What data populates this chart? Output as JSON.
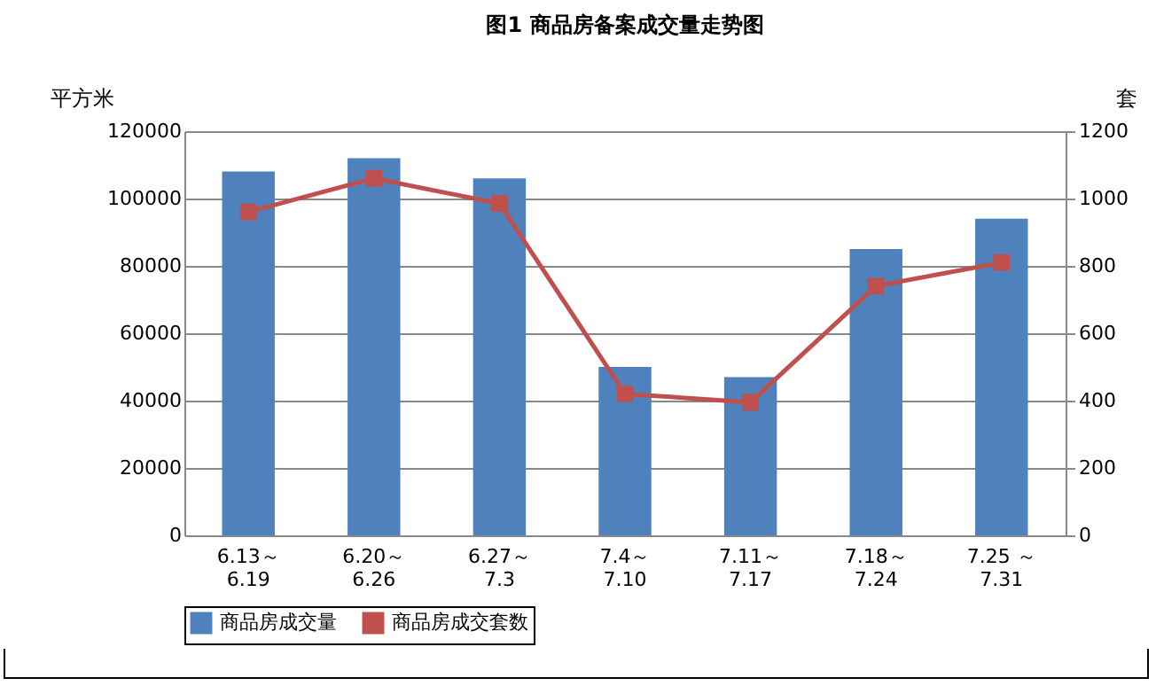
{
  "chart_data": {
    "type": "bar",
    "title": "图1   商品房备案成交量走势图",
    "ylabel": "平方米",
    "y2label": "套",
    "categories": [
      "6.13～\n6.19",
      "6.20～\n6.26",
      "6.27～\n7.3",
      "7.4～\n7.10",
      "7.11～\n7.17",
      "7.18～\n7.24",
      "7.25 ～\n7.31"
    ],
    "series": [
      {
        "name": "商品房成交量",
        "color": "#4f81bd",
        "values": [
          108000,
          112000,
          106000,
          50000,
          47000,
          85000,
          94000
        ]
      },
      {
        "name": "商品房成交套数",
        "type": "line",
        "axis": "y2",
        "color": "#c0504d",
        "values": [
          960,
          1060,
          985,
          420,
          395,
          740,
          810
        ]
      }
    ],
    "ylim": [
      0,
      120000
    ],
    "yticks": [
      0,
      20000,
      40000,
      60000,
      80000,
      100000,
      120000
    ],
    "y2lim": [
      0,
      1200
    ],
    "y2ticks": [
      0,
      200,
      400,
      600,
      800,
      1000,
      1200
    ],
    "grid": "y",
    "legend": "bottom",
    "marker": "square",
    "line_style": "solid"
  }
}
